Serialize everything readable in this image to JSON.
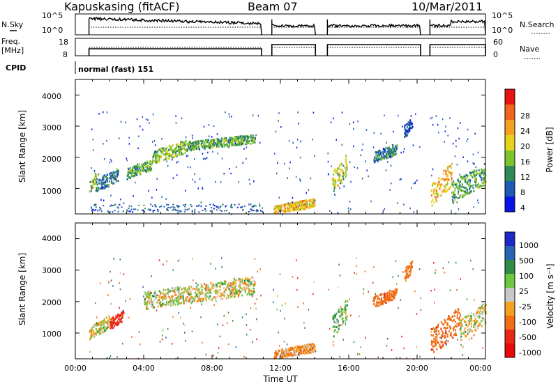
{
  "header": {
    "station": "Kapuskasing (fitACF)",
    "beam": "Beam 07",
    "date": "10/Mar/2011"
  },
  "summary": {
    "nsky_label": "N.Sky",
    "noise_ticks": [
      "10^5",
      "10^0"
    ],
    "nsearch_label": "N.Search",
    "freq_label_1": "Freq.",
    "freq_label_2": "[MHz]",
    "freq_ticks": [
      "18",
      "8"
    ],
    "nave_label": "Nave",
    "nave_ticks": [
      "60",
      "0"
    ],
    "cpid_label": "CPID",
    "cpid_text": "normal (fast) 151"
  },
  "axes": {
    "ylabel": "Slant Range [km]",
    "xlabel": "Time UT",
    "y_ticks": [
      "1000",
      "2000",
      "3000",
      "4000"
    ],
    "x_ticks": [
      "00:00",
      "04:00",
      "08:00",
      "12:00",
      "16:00",
      "20:00",
      "00:00"
    ]
  },
  "colorbars": {
    "power_label": "Power [dB]",
    "power_ticks": [
      "4",
      "8",
      "12",
      "16",
      "20",
      "24",
      "28"
    ],
    "power_colors": [
      "#0a14e6",
      "#1e5bb4",
      "#2f8a5a",
      "#7cc42e",
      "#e6d21e",
      "#f5a01e",
      "#f0641e",
      "#e61414"
    ],
    "velocity_label": "Velocity [m s⁻¹]",
    "velocity_ticks": [
      "1000",
      "500",
      "100",
      "25",
      "-25",
      "-100",
      "-500",
      "-1000"
    ],
    "velocity_colors": [
      "#1e28c8",
      "#2a64b4",
      "#2e8c46",
      "#6cc83c",
      "#c8c8c8",
      "#f5a01e",
      "#f06e14",
      "#e62814",
      "#e60a0a"
    ]
  },
  "chart_data": {
    "type": "heatmap",
    "x_range_hours": [
      0,
      24
    ],
    "y_range_km": [
      180,
      4500
    ],
    "data_gaps_ut": [
      [
        10.9,
        11.5
      ],
      [
        14.05,
        14.75
      ],
      [
        20.2,
        20.75
      ]
    ],
    "power_features": [
      {
        "t": [
          0.8,
          1.2
        ],
        "r": [
          900,
          1500
        ],
        "level": 16
      },
      {
        "t": [
          1.2,
          2.5
        ],
        "r": [
          1000,
          1600
        ],
        "level": 8
      },
      {
        "t": [
          3.0,
          4.5
        ],
        "r": [
          1400,
          1900
        ],
        "level": 12
      },
      {
        "t": [
          4.5,
          6.5
        ],
        "r": [
          1900,
          2500
        ],
        "level": 14
      },
      {
        "t": [
          6.5,
          10.5
        ],
        "r": [
          2300,
          2700
        ],
        "level": 12
      },
      {
        "t": [
          11.6,
          14.0
        ],
        "r": [
          250,
          650
        ],
        "level": 20
      },
      {
        "t": [
          15.0,
          15.9
        ],
        "r": [
          1000,
          2000
        ],
        "level": 16
      },
      {
        "t": [
          17.4,
          18.8
        ],
        "r": [
          1900,
          2400
        ],
        "level": 8
      },
      {
        "t": [
          19.2,
          19.7
        ],
        "r": [
          2700,
          3300
        ],
        "level": 6
      },
      {
        "t": [
          20.8,
          22.0
        ],
        "r": [
          600,
          1700
        ],
        "level": 20
      },
      {
        "t": [
          22.0,
          24.0
        ],
        "r": [
          700,
          1700
        ],
        "level": 12
      }
    ],
    "velocity_features": [
      {
        "t": [
          0.8,
          2.0
        ],
        "r": [
          900,
          1500
        ],
        "velocity": 0
      },
      {
        "t": [
          2.0,
          2.8
        ],
        "r": [
          1200,
          1700
        ],
        "velocity": -600
      },
      {
        "t": [
          4.0,
          10.5
        ],
        "r": [
          1900,
          2700
        ],
        "velocity": 0
      },
      {
        "t": [
          11.6,
          14.0
        ],
        "r": [
          250,
          650
        ],
        "velocity": -100
      },
      {
        "t": [
          15.0,
          15.9
        ],
        "r": [
          1000,
          2000
        ],
        "velocity": 80
      },
      {
        "t": [
          17.4,
          18.8
        ],
        "r": [
          1900,
          2400
        ],
        "velocity": -400
      },
      {
        "t": [
          19.2,
          19.7
        ],
        "r": [
          2700,
          3300
        ],
        "velocity": -200
      },
      {
        "t": [
          20.8,
          22.5
        ],
        "r": [
          500,
          1700
        ],
        "velocity": -400
      },
      {
        "t": [
          22.5,
          24.0
        ],
        "r": [
          900,
          1900
        ],
        "velocity": 0
      }
    ]
  }
}
